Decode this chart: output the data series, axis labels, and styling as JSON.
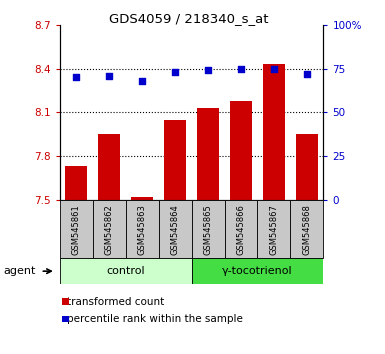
{
  "title": "GDS4059 / 218340_s_at",
  "samples": [
    "GSM545861",
    "GSM545862",
    "GSM545863",
    "GSM545864",
    "GSM545865",
    "GSM545866",
    "GSM545867",
    "GSM545868"
  ],
  "bar_values": [
    7.73,
    7.95,
    7.52,
    8.05,
    8.13,
    8.18,
    8.43,
    7.95
  ],
  "scatter_values": [
    70,
    71,
    68,
    73,
    74,
    75,
    75,
    72
  ],
  "ylim_left": [
    7.5,
    8.7
  ],
  "ylim_right": [
    0,
    100
  ],
  "yticks_left": [
    7.5,
    7.8,
    8.1,
    8.4,
    8.7
  ],
  "yticks_right": [
    0,
    25,
    50,
    75,
    100
  ],
  "ytick_labels_left": [
    "7.5",
    "7.8",
    "8.1",
    "8.4",
    "8.7"
  ],
  "ytick_labels_right": [
    "0",
    "25",
    "50",
    "75",
    "100%"
  ],
  "bar_color": "#cc0000",
  "scatter_color": "#0000cc",
  "bar_bottom": 7.5,
  "grid_lines": [
    7.8,
    8.1,
    8.4
  ],
  "control_label": "control",
  "treatment_label": "γ-tocotrienol",
  "agent_label": "agent",
  "legend_bar_label": "transformed count",
  "legend_scatter_label": "percentile rank within the sample",
  "control_color": "#ccffcc",
  "treatment_color": "#44dd44",
  "sample_bg_color": "#c8c8c8",
  "fig_bg": "#ffffff"
}
